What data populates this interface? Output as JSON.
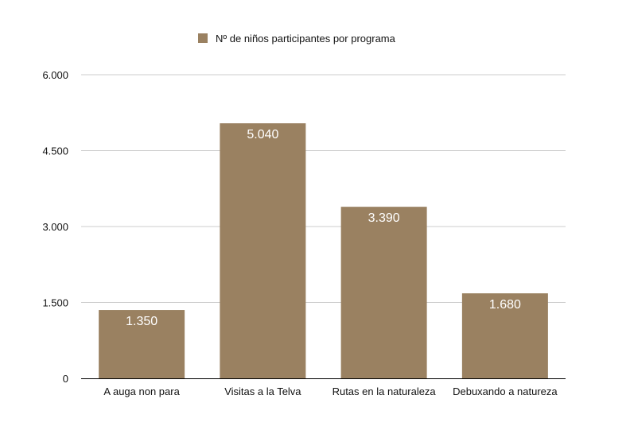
{
  "chart_data": {
    "type": "bar",
    "categories": [
      "A auga non para",
      "Visitas a la Telva",
      "Rutas en la naturaleza",
      "Debuxando a natureza"
    ],
    "series": [
      {
        "name": "Nº de niños participantes por programa",
        "values": [
          1350,
          5040,
          3390,
          1680
        ],
        "value_labels": [
          "1.350",
          "5.040",
          "3.390",
          "1.680"
        ]
      }
    ],
    "ylim": [
      0,
      6000
    ],
    "yticks": [
      0,
      1500,
      3000,
      4500,
      6000
    ],
    "ytick_labels": [
      "0",
      "1.500",
      "3.000",
      "4.500",
      "6.000"
    ],
    "grid": true,
    "legend_position": "top-center",
    "bar_color": "#9a8161",
    "grid_color": "#cccccc",
    "axis_color": "#000000"
  }
}
